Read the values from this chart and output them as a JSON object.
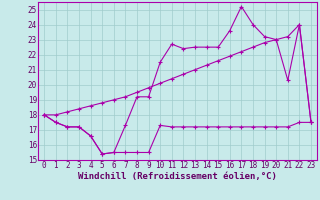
{
  "xlabel": "Windchill (Refroidissement éolien,°C)",
  "bg_color": "#c8eaea",
  "grid_color": "#a0cccc",
  "line_color": "#aa00aa",
  "x_values": [
    0,
    1,
    2,
    3,
    4,
    5,
    6,
    7,
    8,
    9,
    10,
    11,
    12,
    13,
    14,
    15,
    16,
    17,
    18,
    19,
    20,
    21,
    22,
    23
  ],
  "series1": [
    18.0,
    17.5,
    17.2,
    17.2,
    16.6,
    15.4,
    15.5,
    15.5,
    15.5,
    15.5,
    17.3,
    17.2,
    17.2,
    17.2,
    17.2,
    17.2,
    17.2,
    17.2,
    17.2,
    17.2,
    17.2,
    17.2,
    17.5,
    17.5
  ],
  "series2": [
    18.0,
    17.5,
    17.2,
    17.2,
    16.6,
    15.4,
    15.5,
    17.3,
    19.2,
    19.2,
    21.5,
    22.7,
    22.4,
    22.5,
    22.5,
    22.5,
    23.6,
    25.2,
    24.0,
    23.2,
    23.0,
    20.3,
    24.0,
    17.5
  ],
  "series3": [
    18.0,
    18.0,
    18.2,
    18.4,
    18.6,
    18.8,
    19.0,
    19.2,
    19.5,
    19.8,
    20.1,
    20.4,
    20.7,
    21.0,
    21.3,
    21.6,
    21.9,
    22.2,
    22.5,
    22.8,
    23.0,
    23.2,
    24.0,
    17.5
  ],
  "ylim": [
    15,
    25.5
  ],
  "xlim": [
    -0.5,
    23.5
  ],
  "yticks": [
    15,
    16,
    17,
    18,
    19,
    20,
    21,
    22,
    23,
    24,
    25
  ],
  "xticks": [
    0,
    1,
    2,
    3,
    4,
    5,
    6,
    7,
    8,
    9,
    10,
    11,
    12,
    13,
    14,
    15,
    16,
    17,
    18,
    19,
    20,
    21,
    22,
    23
  ],
  "font_color": "#660066",
  "tick_font_size": 5.5,
  "xlabel_font_size": 6.5
}
